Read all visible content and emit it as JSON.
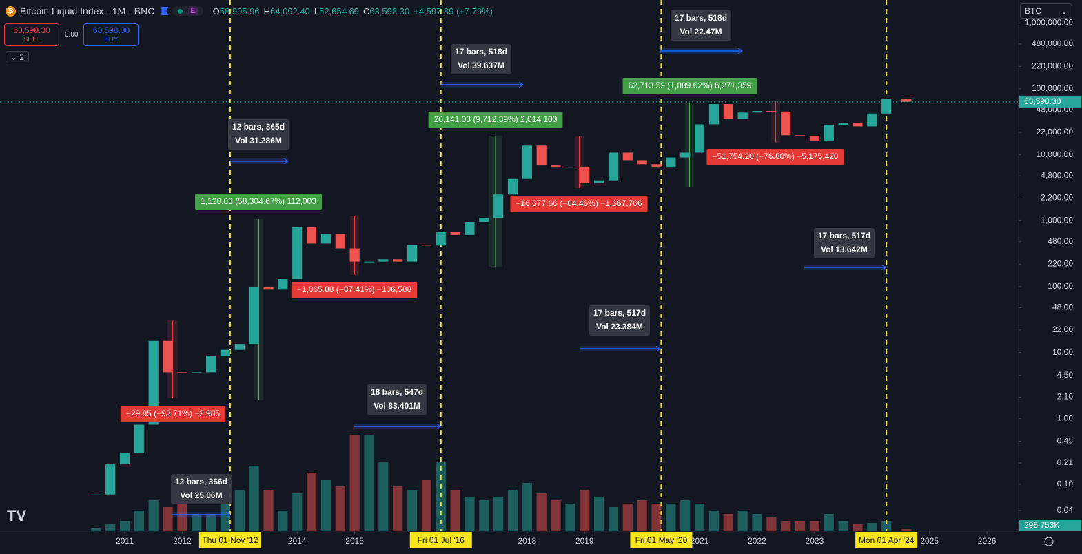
{
  "header": {
    "symbol": "Bitcoin Liquid Index · 1M · BNC",
    "badge": "E",
    "ohlc": [
      {
        "key": "O",
        "value": "58,995.96"
      },
      {
        "key": "H",
        "value": "64,092.40"
      },
      {
        "key": "L",
        "value": "52,654.69"
      },
      {
        "key": "C",
        "value": "63,598.30"
      }
    ],
    "change": "+4,597.89 (+7.79%)",
    "sell_price": "63,598.30",
    "sell": "SELL",
    "spread": "0.00",
    "buy_price": "63,598.30",
    "buy": "BUY",
    "indicator_count": "2",
    "currency": "BTC"
  },
  "chart_data": {
    "type": "candlestick",
    "log_scale": true,
    "grid": false,
    "up_color": "#26a69a",
    "down_color": "#ef5350",
    "x": [
      2010.5,
      2010.75,
      2011,
      2011.25,
      2011.5,
      2011.75,
      2012,
      2012.25,
      2012.5,
      2012.75,
      2013,
      2013.25,
      2013.5,
      2013.75,
      2014,
      2014.25,
      2014.5,
      2014.75,
      2015,
      2015.25,
      2015.5,
      2015.75,
      2016,
      2016.25,
      2016.5,
      2016.75,
      2017,
      2017.25,
      2017.5,
      2017.75,
      2018,
      2018.25,
      2018.5,
      2018.75,
      2019,
      2019.25,
      2019.5,
      2019.75,
      2020,
      2020.25,
      2020.5,
      2020.75,
      2021,
      2021.25,
      2021.5,
      2021.75,
      2022,
      2022.25,
      2022.5,
      2022.75,
      2023,
      2023.25,
      2023.5,
      2023.75,
      2024,
      2024.25,
      2024.6
    ],
    "close": [
      0.07,
      0.2,
      0.3,
      0.8,
      15,
      5,
      4.9,
      5,
      9,
      11,
      13.5,
      100,
      90,
      130,
      800,
      450,
      630,
      380,
      240,
      240,
      260,
      240,
      430,
      420,
      670,
      610,
      960,
      1100,
      2500,
      4300,
      13800,
      6900,
      6400,
      6600,
      3700,
      4100,
      10800,
      8300,
      7200,
      6400,
      9100,
      10800,
      29000,
      58800,
      35000,
      43800,
      46300,
      45500,
      19800,
      19400,
      16500,
      28500,
      30500,
      27000,
      42300,
      71300,
      63598.3
    ],
    "volume": [
      375,
      750,
      1125,
      2250,
      3375,
      2625,
      3000,
      1875,
      1875,
      3000,
      4500,
      7125,
      4500,
      2250,
      4125,
      6375,
      5625,
      4875,
      10500,
      10500,
      7500,
      4875,
      4500,
      5625,
      7500,
      4500,
      3750,
      3375,
      3750,
      4500,
      5250,
      4125,
      3375,
      3000,
      4500,
      3750,
      2625,
      3000,
      3375,
      3000,
      3000,
      3375,
      3000,
      2250,
      1875,
      2250,
      1875,
      1500,
      1125,
      1125,
      1125,
      1875,
      1125,
      750,
      900,
      1125,
      296.753
    ],
    "volume_ylim": [
      0,
      15000
    ],
    "volume_label": "296.753K",
    "last_price_label": "63,598.30",
    "xlim": [
      2008.83,
      2026.55
    ],
    "xticks": [
      2011,
      2012,
      2014,
      2015,
      2018,
      2019,
      2021,
      2022,
      2023,
      2025,
      2026
    ],
    "ylim": [
      0.0194,
      2234000
    ],
    "yticks": [
      {
        "value": 1000000,
        "label": "1,000,000.00"
      },
      {
        "value": 480000,
        "label": "480,000.00"
      },
      {
        "value": 220000,
        "label": "220,000.00"
      },
      {
        "value": 100000,
        "label": "100,000.00"
      },
      {
        "value": 48000,
        "label": "48,000.00"
      },
      {
        "value": 22000,
        "label": "22,000.00"
      },
      {
        "value": 10000,
        "label": "10,000.00"
      },
      {
        "value": 4800,
        "label": "4,800.00"
      },
      {
        "value": 2200,
        "label": "2,200.00"
      },
      {
        "value": 1000,
        "label": "1,000.00"
      },
      {
        "value": 480,
        "label": "480.00"
      },
      {
        "value": 220,
        "label": "220.00"
      },
      {
        "value": 100,
        "label": "100.00"
      },
      {
        "value": 48,
        "label": "48.00"
      },
      {
        "value": 22,
        "label": "22.00"
      },
      {
        "value": 10,
        "label": "10.00"
      },
      {
        "value": 4.5,
        "label": "4.50"
      },
      {
        "value": 2.1,
        "label": "2.10"
      },
      {
        "value": 1,
        "label": "1.00"
      },
      {
        "value": 0.45,
        "label": "0.45"
      },
      {
        "value": 0.21,
        "label": "0.21"
      },
      {
        "value": 0.1,
        "label": "0.10"
      },
      {
        "value": 0.04,
        "label": "0.04"
      }
    ],
    "halvings": [
      {
        "value": 2012.833,
        "label": "Thu 01 Nov '12"
      },
      {
        "value": 2016.5,
        "label": "Fri 01 Jul '16"
      },
      {
        "value": 2020.333,
        "label": "Fri 01 May '20"
      },
      {
        "value": 2024.25,
        "label": "Mon 01 Apr '24"
      }
    ],
    "price_ranges": [
      {
        "text": "1,120.03 (58,304.67%) 112,003",
        "kind": "up"
      },
      {
        "text": "−29.85 (−93.71%) −2,985",
        "kind": "down"
      },
      {
        "text": "−1,065.88 (−87.41%) −106,588",
        "kind": "down"
      },
      {
        "text": "20,141.03 (9,712.39%) 2,014,103",
        "kind": "up"
      },
      {
        "text": "−16,677.66 (−84.46%) −1,667,766",
        "kind": "down"
      },
      {
        "text": "62,713.59 (1,889.62%) 6,271,359",
        "kind": "up"
      },
      {
        "text": "−51,754.20 (−76.80%) −5,175,420",
        "kind": "down"
      }
    ],
    "date_ranges": [
      {
        "bars": "12 bars, 365d",
        "vol": "Vol 31.286M"
      },
      {
        "bars": "12 bars, 366d",
        "vol": "Vol 25.06M"
      },
      {
        "bars": "18 bars, 547d",
        "vol": "Vol 83.401M"
      },
      {
        "bars": "17 bars, 518d",
        "vol": "Vol 39.637M"
      },
      {
        "bars": "17 bars, 517d",
        "vol": "Vol 23.384M"
      },
      {
        "bars": "17 bars, 518d",
        "vol": "Vol 22.47M"
      },
      {
        "bars": "17 bars, 517d",
        "vol": "Vol 13.642M"
      }
    ]
  }
}
